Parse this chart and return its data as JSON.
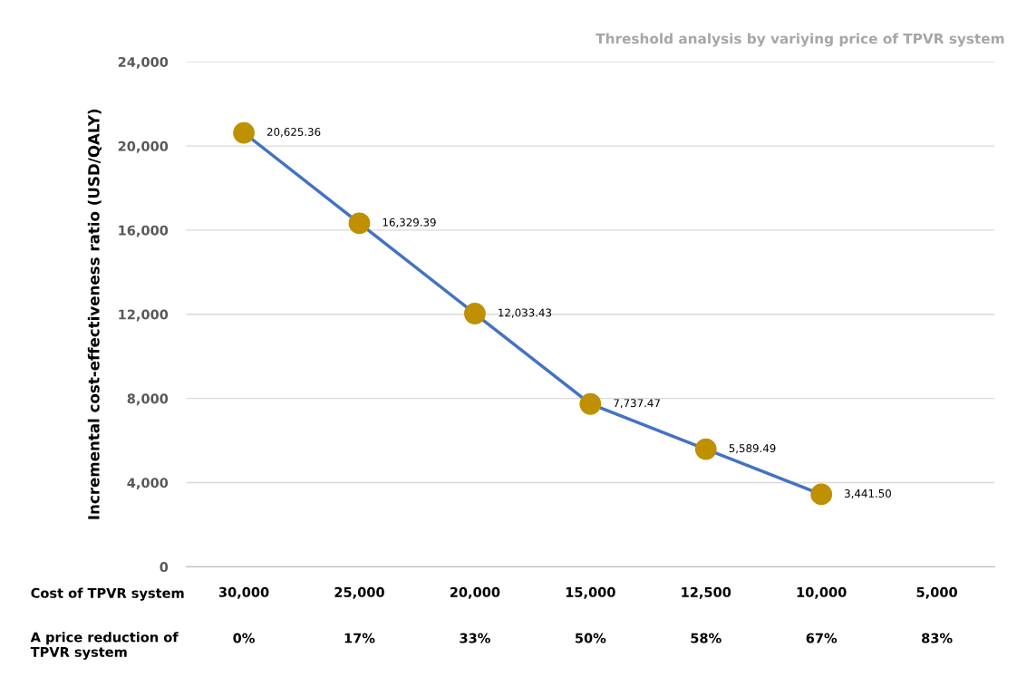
{
  "chart_data": {
    "type": "line",
    "title": "Threshold analysis by variying price of TPVR system",
    "ylabel": "Incremental cost-effectiveness ratio (USD/QALY)",
    "categories": [
      "30,000\n0%",
      "25,000\n17%",
      "20,000\n33%",
      "15,000\n50%",
      "12,500\n58%",
      "10,000\n67%",
      "5,000\n83%"
    ],
    "series": [
      {
        "color": "#4472c4",
        "colors": [
          "#bf9000",
          "#bf9000",
          "#bf9000",
          "#bf9000",
          "#bf9000",
          "#bf9000",
          "#bf9000"
        ],
        "values": [
          20625.36,
          16329.39,
          12033.43,
          7737.47,
          5589.49,
          3441.5,
          null
        ],
        "value_labels": [
          "20,625.36",
          "16,329.39",
          "12,033.43",
          "7,737.47",
          "5,589.49",
          "3,441.50",
          null
        ]
      }
    ],
    "ylim": [
      0,
      24000
    ],
    "yticks": [
      {
        "value": 0,
        "label": "0"
      },
      {
        "value": 4000,
        "label": "4,000"
      },
      {
        "value": 8000,
        "label": "8,000"
      },
      {
        "value": 12000,
        "label": "12,000"
      },
      {
        "value": 16000,
        "label": "16,000"
      },
      {
        "value": 20000,
        "label": "20,000"
      },
      {
        "value": 24000,
        "label": "24,000"
      }
    ],
    "grid": "y",
    "marker": "circle",
    "line_style": "solid",
    "legend": false,
    "annotations": [
      "Cost of TPVR system",
      "A price reduction of\nTPVR system"
    ]
  }
}
